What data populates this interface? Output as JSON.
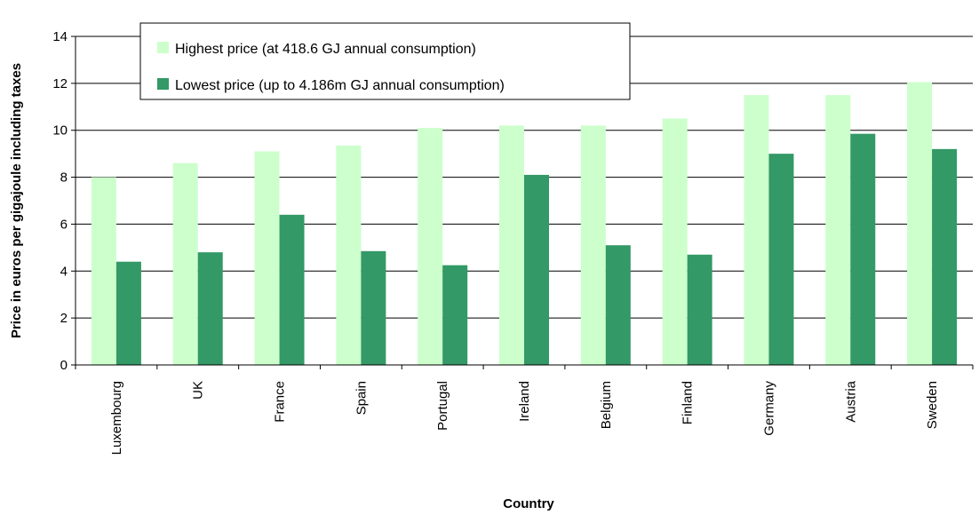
{
  "chart_data": {
    "type": "bar",
    "xlabel": "Country",
    "ylabel": "Price in euros per gigajoule including taxes",
    "ylim": [
      0,
      14
    ],
    "yticks": [
      0,
      2,
      4,
      6,
      8,
      10,
      12,
      14
    ],
    "grid": true,
    "legend_position": "top-left",
    "categories": [
      "Luxembourg",
      "UK",
      "France",
      "Spain",
      "Portugal",
      "Ireland",
      "Belgium",
      "Finland",
      "Germany",
      "Austria",
      "Sweden"
    ],
    "series": [
      {
        "name": "Highest price (at 418.6 GJ annual consumption)",
        "color": "#ccffcc",
        "values": [
          8.0,
          8.6,
          9.1,
          9.35,
          10.1,
          10.2,
          10.2,
          10.5,
          11.5,
          11.5,
          12.05
        ]
      },
      {
        "name": "Lowest price (up to 4.186m GJ annual consumption)",
        "color": "#339966",
        "values": [
          4.4,
          4.8,
          6.4,
          4.85,
          4.25,
          8.1,
          5.1,
          4.7,
          9.0,
          9.85,
          9.2
        ]
      }
    ]
  }
}
